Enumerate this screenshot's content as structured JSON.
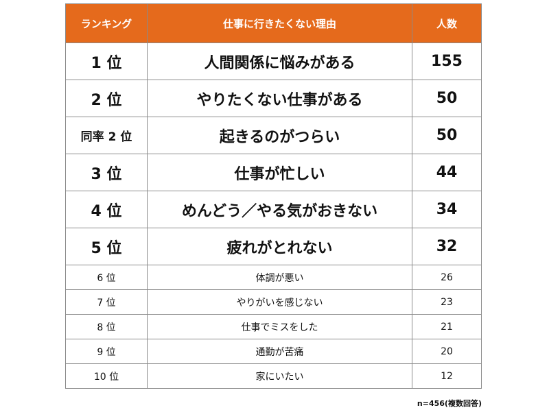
{
  "header": {
    "rank": "ランキング",
    "reason": "仕事に行きたくない理由",
    "count": "人数"
  },
  "rows": [
    {
      "rank": "1 位",
      "reason": "人間関係に悩みがある",
      "count": "155"
    },
    {
      "rank": "2 位",
      "reason": "やりたくない仕事がある",
      "count": "50"
    },
    {
      "rank": "同率 2 位",
      "reason": "起きるのがつらい",
      "count": "50"
    },
    {
      "rank": "3 位",
      "reason": "仕事が忙しい",
      "count": "44"
    },
    {
      "rank": "4 位",
      "reason": "めんどう／やる気がおきない",
      "count": "34"
    },
    {
      "rank": "5 位",
      "reason": "疲れがとれない",
      "count": "32"
    },
    {
      "rank": "6 位",
      "reason": "体調が悪い",
      "count": "26"
    },
    {
      "rank": "7 位",
      "reason": "やりがいを感じない",
      "count": "23"
    },
    {
      "rank": "8 位",
      "reason": "仕事でミスをした",
      "count": "21"
    },
    {
      "rank": "9 位",
      "reason": "通勤が苦痛",
      "count": "20"
    },
    {
      "rank": "10 位",
      "reason": "家にいたい",
      "count": "12"
    }
  ],
  "footnote": "n=456(複数回答)",
  "colors": {
    "header_bg": "#e56a1c",
    "header_text": "#ffffff",
    "border": "#8a8a8a"
  }
}
